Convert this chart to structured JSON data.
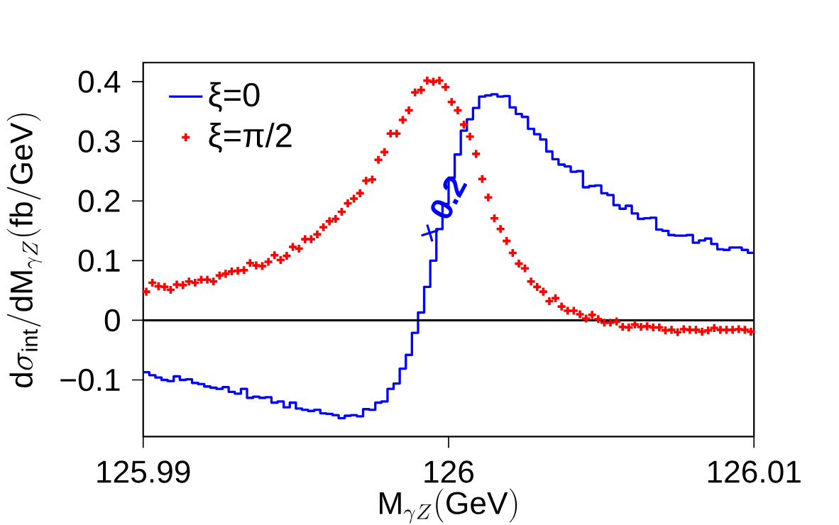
{
  "chart_data": {
    "type": "step",
    "xlabel": "\\mathrm{M}_{\\gamma Z}\\mathrm{(GeV)}",
    "ylabel": "\\mathrm{d}\\sigma_{\\mathrm{int}}/\\mathrm{dM}_{\\gamma Z}\\mathrm{(fb/GeV)}",
    "series": [
      {
        "name": "ξ=0",
        "color": "#0000ff",
        "x": [
          125.9901,
          125.9903,
          125.9905,
          125.9907,
          125.9909,
          125.9911,
          125.9913,
          125.9915,
          125.9917,
          125.9919,
          125.9921,
          125.9923,
          125.9925,
          125.9927,
          125.9929,
          125.9931,
          125.9933,
          125.9935,
          125.9937,
          125.9939,
          125.9941,
          125.9943,
          125.9945,
          125.9947,
          125.9949,
          125.9951,
          125.9953,
          125.9955,
          125.9957,
          125.9959,
          125.9961,
          125.9963,
          125.9965,
          125.9967,
          125.9969,
          125.9971,
          125.9973,
          125.9975,
          125.9977,
          125.9979,
          125.9981,
          125.9983,
          125.9985,
          125.9987,
          125.9989,
          125.9991,
          125.9993,
          125.9995,
          125.9997,
          125.9999,
          126.0001,
          126.0003,
          126.0005,
          126.0007,
          126.0009,
          126.0011,
          126.0013,
          126.0015,
          126.0017,
          126.0019,
          126.0021,
          126.0023,
          126.0025,
          126.0027,
          126.0029,
          126.0031,
          126.0033,
          126.0035,
          126.0037,
          126.0039,
          126.0041,
          126.0043,
          126.0045,
          126.0047,
          126.0049,
          126.0051,
          126.0053,
          126.0055,
          126.0057,
          126.0059,
          126.0061,
          126.0063,
          126.0065,
          126.0067,
          126.0069,
          126.0071,
          126.0073,
          126.0075,
          126.0077,
          126.0079,
          126.0081,
          126.0083,
          126.0085,
          126.0087,
          126.0089,
          126.0091,
          126.0093,
          126.0095,
          126.0097,
          126.0099
        ],
        "values": [
          -0.087,
          -0.092,
          -0.096,
          -0.1,
          -0.102,
          -0.094,
          -0.1,
          -0.099,
          -0.105,
          -0.107,
          -0.111,
          -0.113,
          -0.115,
          -0.112,
          -0.12,
          -0.123,
          -0.115,
          -0.13,
          -0.128,
          -0.13,
          -0.129,
          -0.138,
          -0.136,
          -0.146,
          -0.138,
          -0.148,
          -0.15,
          -0.152,
          -0.15,
          -0.156,
          -0.157,
          -0.159,
          -0.164,
          -0.16,
          -0.159,
          -0.161,
          -0.149,
          -0.15,
          -0.138,
          -0.136,
          -0.115,
          -0.106,
          -0.081,
          -0.058,
          -0.021,
          0.013,
          0.056,
          0.1,
          0.153,
          0.195,
          0.239,
          0.278,
          0.318,
          0.337,
          0.356,
          0.375,
          0.377,
          0.379,
          0.375,
          0.376,
          0.357,
          0.346,
          0.341,
          0.321,
          0.312,
          0.303,
          0.283,
          0.27,
          0.261,
          0.258,
          0.249,
          0.25,
          0.223,
          0.225,
          0.226,
          0.213,
          0.21,
          0.193,
          0.187,
          0.192,
          0.179,
          0.17,
          0.171,
          0.172,
          0.152,
          0.15,
          0.143,
          0.142,
          0.142,
          0.143,
          0.13,
          0.134,
          0.137,
          0.128,
          0.119,
          0.118,
          0.122,
          0.122,
          0.118,
          0.113
        ]
      },
      {
        "name": "ξ=π/2",
        "type": "scatter",
        "color": "#ff0000",
        "marker": "cross",
        "x": [
          125.9901,
          125.9903,
          125.9905,
          125.9907,
          125.9909,
          125.9911,
          125.9913,
          125.9915,
          125.9917,
          125.9919,
          125.9921,
          125.9923,
          125.9925,
          125.9927,
          125.9929,
          125.9931,
          125.9933,
          125.9935,
          125.9937,
          125.9939,
          125.9941,
          125.9943,
          125.9945,
          125.9947,
          125.9949,
          125.9951,
          125.9953,
          125.9955,
          125.9957,
          125.9959,
          125.9961,
          125.9963,
          125.9965,
          125.9967,
          125.9969,
          125.9971,
          125.9973,
          125.9975,
          125.9977,
          125.9979,
          125.9981,
          125.9983,
          125.9985,
          125.9987,
          125.9989,
          125.9991,
          125.9993,
          125.9995,
          125.9997,
          125.9999,
          126.0001,
          126.0003,
          126.0005,
          126.0007,
          126.0009,
          126.0011,
          126.0013,
          126.0015,
          126.0017,
          126.0019,
          126.0021,
          126.0023,
          126.0025,
          126.0027,
          126.0029,
          126.0031,
          126.0033,
          126.0035,
          126.0037,
          126.0039,
          126.0041,
          126.0043,
          126.0045,
          126.0047,
          126.0049,
          126.0051,
          126.0053,
          126.0055,
          126.0057,
          126.0059,
          126.0061,
          126.0063,
          126.0065,
          126.0067,
          126.0069,
          126.0071,
          126.0073,
          126.0075,
          126.0077,
          126.0079,
          126.0081,
          126.0083,
          126.0085,
          126.0087,
          126.0089,
          126.0091,
          126.0093,
          126.0095,
          126.0097,
          126.0099
        ],
        "values": [
          0.048,
          0.063,
          0.057,
          0.056,
          0.051,
          0.06,
          0.059,
          0.065,
          0.063,
          0.068,
          0.068,
          0.065,
          0.075,
          0.078,
          0.082,
          0.083,
          0.084,
          0.096,
          0.092,
          0.091,
          0.098,
          0.109,
          0.101,
          0.108,
          0.123,
          0.12,
          0.136,
          0.136,
          0.144,
          0.156,
          0.166,
          0.17,
          0.182,
          0.196,
          0.204,
          0.213,
          0.234,
          0.236,
          0.269,
          0.282,
          0.313,
          0.313,
          0.336,
          0.352,
          0.382,
          0.386,
          0.402,
          0.4,
          0.402,
          0.391,
          0.366,
          0.352,
          0.328,
          0.308,
          0.279,
          0.237,
          0.206,
          0.171,
          0.153,
          0.133,
          0.113,
          0.095,
          0.087,
          0.065,
          0.056,
          0.048,
          0.032,
          0.037,
          0.023,
          0.016,
          0.016,
          0.01,
          0.003,
          0.009,
          0.002,
          -0.004,
          -0.004,
          -0.002,
          -0.011,
          -0.012,
          -0.007,
          -0.011,
          -0.01,
          -0.012,
          -0.012,
          -0.017,
          -0.016,
          -0.02,
          -0.015,
          -0.016,
          -0.016,
          -0.019,
          -0.017,
          -0.013,
          -0.016,
          -0.016,
          -0.016,
          -0.015,
          -0.016,
          -0.019
        ]
      }
    ],
    "xlim": [
      125.99,
      126.01
    ],
    "xticks": [
      125.99,
      126,
      126.01
    ],
    "ylim": [
      -0.195,
      0.432
    ],
    "yticks": [
      {
        "value": -0.1,
        "label": "−0.1"
      },
      0,
      0.1,
      0.2,
      0.3,
      0.4
    ],
    "ref_lines": [
      {
        "axis": "y",
        "value": 0,
        "color": "#000000"
      }
    ],
    "annotations": [
      "× **0.2**"
    ],
    "legend": "top left"
  }
}
